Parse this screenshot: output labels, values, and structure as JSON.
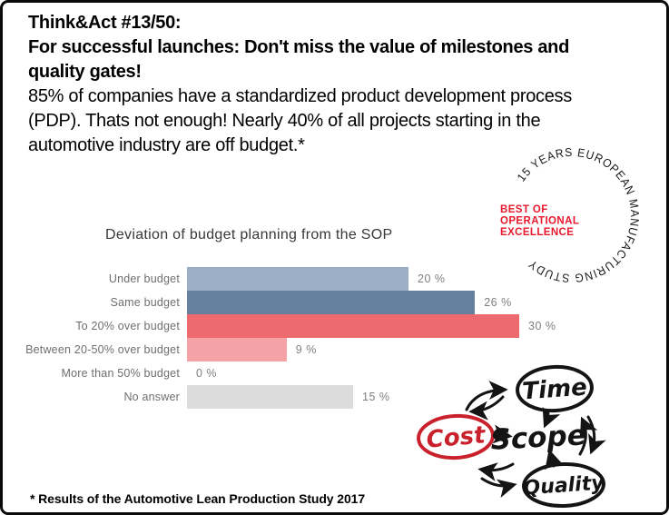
{
  "header": {
    "bold_lines": [
      "Think&Act #13/50:",
      "For successful launches: Don't miss the value of milestones and",
      "quality gates!"
    ],
    "body_lines": [
      "85% of companies have a standardized product development process",
      "(PDP). Thats not enough! Nearly 40% of all projects starting in the",
      "automotive industry are off budget.*"
    ]
  },
  "chart_data": {
    "type": "bar",
    "orientation": "horizontal",
    "title": "Deviation of budget planning from the SOP",
    "categories": [
      "Under budget",
      "Same budget",
      "To 20% over budget",
      "Between 20-50% over budget",
      "More than 50% budget",
      "No answer"
    ],
    "values": [
      20,
      26,
      30,
      9,
      0,
      15
    ],
    "value_labels": [
      "20 %",
      "26 %",
      "30 %",
      "9 %",
      "0 %",
      "15 %"
    ],
    "bar_colors": [
      "#9bafc4",
      "#64809d",
      "#ed6a6f",
      "#f4a2a6",
      "#ffffff",
      "#dcdcdc"
    ],
    "xlim": [
      0,
      30
    ],
    "grid": false,
    "legend": "none",
    "xlabel": "",
    "ylabel": ""
  },
  "badge": {
    "circular_text": "15 YEARS EUROPEAN MANUFACTURING STUDY",
    "center_lines": [
      "BEST OF",
      "OPERATIONAL",
      "EXCELLENCE"
    ],
    "accent_color": "#e8192c",
    "ring_text_color": "#1a1a1a"
  },
  "diagram": {
    "nodes": [
      {
        "label": "Time"
      },
      {
        "label": "Cost"
      },
      {
        "label": "Scope"
      },
      {
        "label": "Quality"
      }
    ],
    "cost_color": "#c9202b",
    "ink_color": "#141414"
  },
  "footer": {
    "note": "* Results of the Automotive Lean Production Study 2017"
  }
}
